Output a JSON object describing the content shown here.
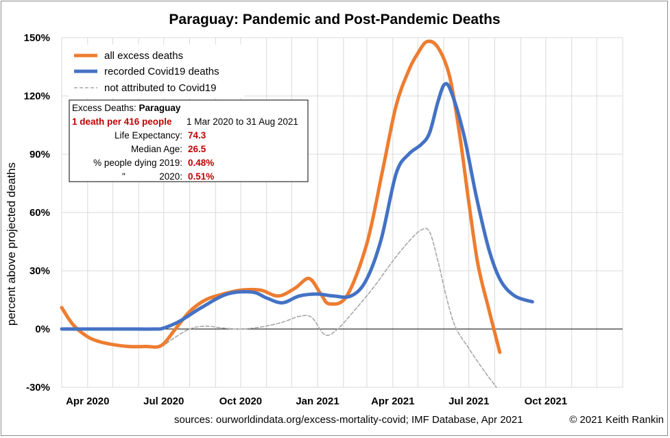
{
  "chart_data": {
    "type": "line",
    "title_country": "Paraguay",
    "title_rest": ": Pandemic and Post-Pandemic Deaths",
    "ylabel": "percent above projected deaths",
    "xlabel": "",
    "ylim": [
      -30,
      150
    ],
    "yticks": [
      {
        "value": -30,
        "label": "-30%"
      },
      {
        "value": 0,
        "label": "0%"
      },
      {
        "value": 30,
        "label": "30%"
      },
      {
        "value": 60,
        "label": "60%"
      },
      {
        "value": 90,
        "label": "90%"
      },
      {
        "value": 120,
        "label": "120%"
      },
      {
        "value": 150,
        "label": "150%"
      }
    ],
    "xlim": [
      "2020-03-01",
      "2022-01-01"
    ],
    "xticks": [
      {
        "date": "2020-04-01",
        "label": "Apr 2020"
      },
      {
        "date": "2020-07-01",
        "label": "Jul 2020"
      },
      {
        "date": "2020-10-01",
        "label": "Oct 2020"
      },
      {
        "date": "2021-01-01",
        "label": "Jan 2021"
      },
      {
        "date": "2021-04-01",
        "label": "Apr 2021"
      },
      {
        "date": "2021-07-01",
        "label": "Jul 2021"
      },
      {
        "date": "2021-10-01",
        "label": "Oct 2021"
      }
    ],
    "grid": true,
    "legend_position": "top-left",
    "series": [
      {
        "name": "all excess deaths",
        "color": "#ed7d31",
        "style": "solid",
        "points": [
          [
            "2020-03-01",
            11
          ],
          [
            "2020-03-15",
            2
          ],
          [
            "2020-04-01",
            -4
          ],
          [
            "2020-04-15",
            -6.5
          ],
          [
            "2020-05-01",
            -8
          ],
          [
            "2020-05-20",
            -9
          ],
          [
            "2020-06-10",
            -9
          ],
          [
            "2020-06-28",
            -8.5
          ],
          [
            "2020-07-15",
            0
          ],
          [
            "2020-08-01",
            9
          ],
          [
            "2020-08-20",
            15
          ],
          [
            "2020-09-10",
            18
          ],
          [
            "2020-10-01",
            20
          ],
          [
            "2020-10-25",
            20
          ],
          [
            "2020-11-15",
            17
          ],
          [
            "2020-12-05",
            21
          ],
          [
            "2020-12-22",
            26
          ],
          [
            "2021-01-05",
            18
          ],
          [
            "2021-01-15",
            13
          ],
          [
            "2021-02-05",
            17
          ],
          [
            "2021-03-01",
            44
          ],
          [
            "2021-03-20",
            82
          ],
          [
            "2021-04-05",
            115
          ],
          [
            "2021-04-20",
            133
          ],
          [
            "2021-05-01",
            142
          ],
          [
            "2021-05-12",
            148
          ],
          [
            "2021-05-25",
            145
          ],
          [
            "2021-06-08",
            130
          ],
          [
            "2021-06-20",
            100
          ],
          [
            "2021-07-01",
            65
          ],
          [
            "2021-07-12",
            33
          ],
          [
            "2021-07-25",
            10
          ],
          [
            "2021-08-07",
            -12
          ]
        ]
      },
      {
        "name": "recorded Covid19 deaths",
        "color": "#4472c4",
        "style": "solid",
        "points": [
          [
            "2020-03-01",
            0
          ],
          [
            "2020-03-20",
            0
          ],
          [
            "2020-04-15",
            0
          ],
          [
            "2020-05-15",
            0
          ],
          [
            "2020-06-20",
            0
          ],
          [
            "2020-07-01",
            0.5
          ],
          [
            "2020-07-20",
            4
          ],
          [
            "2020-08-15",
            11
          ],
          [
            "2020-09-15",
            18
          ],
          [
            "2020-10-15",
            19
          ],
          [
            "2020-11-01",
            16
          ],
          [
            "2020-11-20",
            13.5
          ],
          [
            "2020-12-10",
            17
          ],
          [
            "2021-01-01",
            18
          ],
          [
            "2021-01-20",
            17
          ],
          [
            "2021-02-10",
            17
          ],
          [
            "2021-02-28",
            25
          ],
          [
            "2021-03-18",
            46
          ],
          [
            "2021-04-05",
            80
          ],
          [
            "2021-04-20",
            90
          ],
          [
            "2021-05-05",
            95
          ],
          [
            "2021-05-15",
            101
          ],
          [
            "2021-05-25",
            117
          ],
          [
            "2021-06-02",
            126
          ],
          [
            "2021-06-10",
            122
          ],
          [
            "2021-06-25",
            100
          ],
          [
            "2021-07-10",
            68
          ],
          [
            "2021-07-25",
            41
          ],
          [
            "2021-08-08",
            25
          ],
          [
            "2021-08-25",
            17
          ],
          [
            "2021-09-15",
            14
          ]
        ]
      },
      {
        "name": "not attributed to Covid19",
        "color": "#a6a6a6",
        "style": "dashed",
        "points": [
          [
            "2020-03-01",
            11
          ],
          [
            "2020-03-15",
            2
          ],
          [
            "2020-04-01",
            -4
          ],
          [
            "2020-04-15",
            -6.5
          ],
          [
            "2020-05-01",
            -8
          ],
          [
            "2020-05-20",
            -9
          ],
          [
            "2020-06-10",
            -9
          ],
          [
            "2020-06-28",
            -9
          ],
          [
            "2020-07-12",
            -5
          ],
          [
            "2020-08-01",
            0
          ],
          [
            "2020-08-20",
            1.5
          ],
          [
            "2020-09-10",
            0.5
          ],
          [
            "2020-10-01",
            0
          ],
          [
            "2020-10-25",
            1
          ],
          [
            "2020-11-20",
            3.5
          ],
          [
            "2020-12-10",
            6.5
          ],
          [
            "2020-12-25",
            6
          ],
          [
            "2021-01-10",
            -3
          ],
          [
            "2021-01-25",
            0
          ],
          [
            "2021-02-15",
            10
          ],
          [
            "2021-03-10",
            22
          ],
          [
            "2021-04-01",
            35
          ],
          [
            "2021-04-20",
            45
          ],
          [
            "2021-05-05",
            51
          ],
          [
            "2021-05-15",
            50
          ],
          [
            "2021-05-25",
            35
          ],
          [
            "2021-06-05",
            15
          ],
          [
            "2021-06-15",
            1
          ],
          [
            "2021-07-01",
            -10
          ],
          [
            "2021-07-20",
            -22
          ],
          [
            "2021-08-03",
            -30
          ]
        ]
      }
    ],
    "info_box": {
      "header_prefix": "Excess Deaths: ",
      "header_country": "Paraguay",
      "rate": "1 death per 416 people",
      "period": "1 Mar 2020 to 31 Aug 2021",
      "rows": [
        {
          "label": "Life Expectancy:",
          "value": "74.3"
        },
        {
          "label": "Median Age:",
          "value": "26.5"
        },
        {
          "label": "% people dying 2019:",
          "value": "0.48%"
        },
        {
          "label": "\"",
          "label2": "2020:",
          "value": "0.51%"
        }
      ]
    },
    "source_text": "sources:  ourworldindata.org/excess-mortality-covid;  IMF Database, Apr 2021",
    "credit_text": "© 2021 Keith Rankin"
  }
}
